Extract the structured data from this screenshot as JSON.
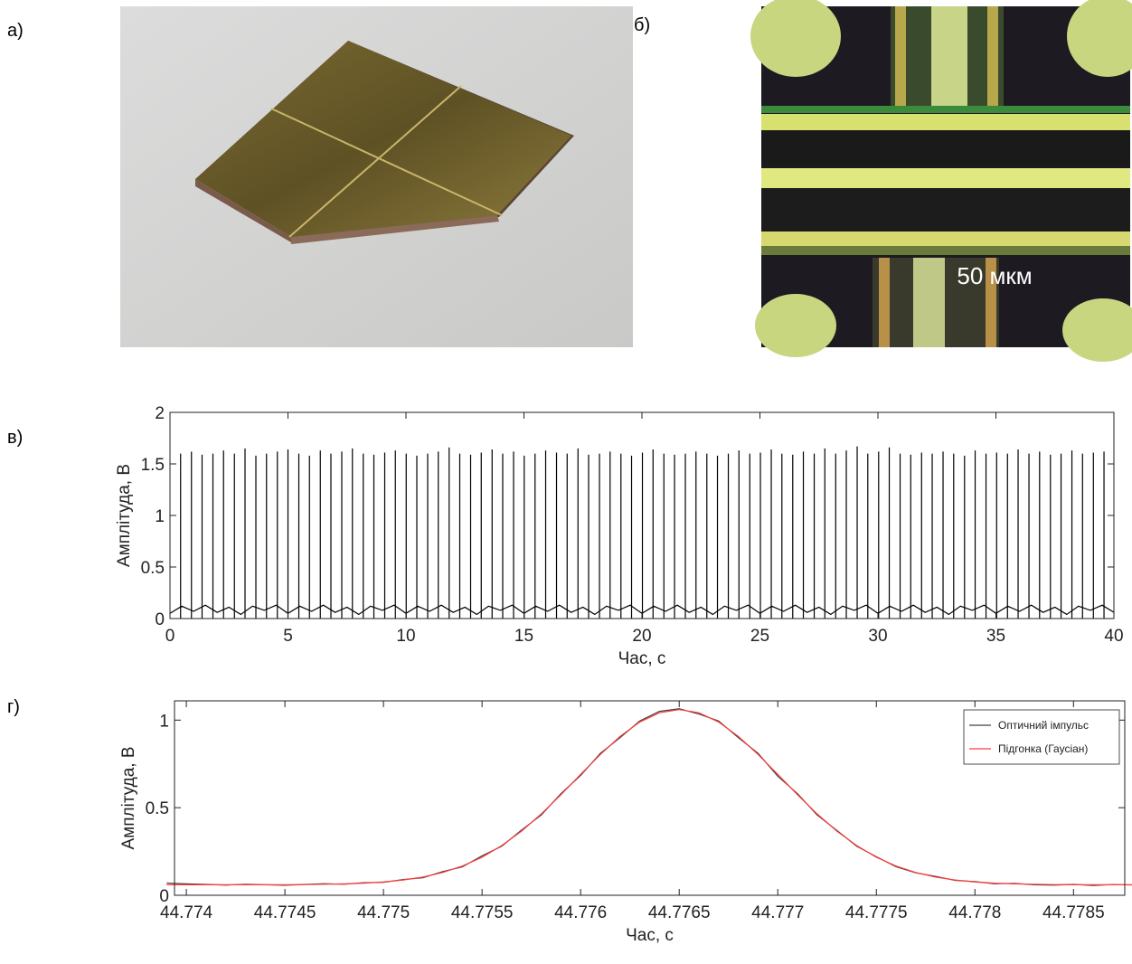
{
  "panel_labels": [
    "а)",
    "б)",
    "в)",
    "г)"
  ],
  "scale_label": "50 мкм",
  "chart_data": [
    {
      "type": "line",
      "xlabel": "Час, с",
      "ylabel": "Амплітуда, В",
      "xlim": [
        0,
        40
      ],
      "ylim": [
        0,
        2
      ],
      "xticks": [
        0,
        5,
        10,
        15,
        20,
        25,
        30,
        35,
        40
      ],
      "yticks": [
        0,
        0.5,
        1,
        1.5,
        2
      ],
      "series": [
        {
          "color": "#000000",
          "style": "stem",
          "x": [
            0.45,
            0.91,
            1.36,
            1.82,
            2.27,
            2.73,
            3.18,
            3.64,
            4.09,
            4.55,
            5.0,
            5.46,
            5.91,
            6.37,
            6.82,
            7.28,
            7.73,
            8.19,
            8.64,
            9.1,
            9.55,
            10.01,
            10.46,
            10.92,
            11.37,
            11.83,
            12.28,
            12.74,
            13.19,
            13.65,
            14.1,
            14.56,
            15.01,
            15.47,
            15.92,
            16.38,
            16.83,
            17.29,
            17.74,
            18.2,
            18.65,
            19.11,
            19.56,
            20.02,
            20.47,
            20.93,
            21.38,
            21.84,
            22.29,
            22.75,
            23.2,
            23.66,
            24.11,
            24.57,
            25.02,
            25.48,
            25.93,
            26.39,
            26.84,
            27.3,
            27.75,
            28.21,
            28.66,
            29.12,
            29.57,
            30.03,
            30.48,
            30.94,
            31.39,
            31.85,
            32.3,
            32.76,
            33.21,
            33.67,
            34.12,
            34.58,
            35.03,
            35.49,
            35.94,
            36.4,
            36.85,
            37.31,
            37.76,
            38.22,
            38.67,
            39.13,
            39.58
          ],
          "values": [
            1.6,
            1.62,
            1.59,
            1.6,
            1.63,
            1.6,
            1.65,
            1.58,
            1.6,
            1.62,
            1.64,
            1.6,
            1.58,
            1.63,
            1.6,
            1.62,
            1.65,
            1.6,
            1.59,
            1.61,
            1.63,
            1.6,
            1.58,
            1.6,
            1.62,
            1.66,
            1.6,
            1.59,
            1.61,
            1.64,
            1.6,
            1.62,
            1.58,
            1.6,
            1.63,
            1.61,
            1.6,
            1.65,
            1.59,
            1.6,
            1.62,
            1.6,
            1.58,
            1.61,
            1.64,
            1.6,
            1.59,
            1.6,
            1.62,
            1.6,
            1.58,
            1.6,
            1.63,
            1.6,
            1.61,
            1.64,
            1.6,
            1.59,
            1.62,
            1.6,
            1.65,
            1.6,
            1.63,
            1.67,
            1.6,
            1.62,
            1.66,
            1.6,
            1.59,
            1.61,
            1.6,
            1.62,
            1.6,
            1.58,
            1.63,
            1.6,
            1.61,
            1.6,
            1.64,
            1.6,
            1.62,
            1.59,
            1.6,
            1.63,
            1.6,
            1.61,
            1.62
          ]
        },
        {
          "color": "#000000",
          "style": "line",
          "x": [
            0,
            0.5,
            1,
            1.5,
            2,
            2.5,
            3,
            3.5,
            4,
            4.5,
            5,
            5.5,
            6,
            6.5,
            7,
            7.5,
            8,
            8.5,
            9,
            9.5,
            10,
            10.5,
            11,
            11.5,
            12,
            12.5,
            13,
            13.5,
            14,
            14.5,
            15,
            15.5,
            16,
            16.5,
            17,
            17.5,
            18,
            18.5,
            19,
            19.5,
            20,
            20.5,
            21,
            21.5,
            22,
            22.5,
            23,
            23.5,
            24,
            24.5,
            25,
            25.5,
            26,
            26.5,
            27,
            27.5,
            28,
            28.5,
            29,
            29.5,
            30,
            30.5,
            31,
            31.5,
            32,
            32.5,
            33,
            33.5,
            34,
            34.5,
            35,
            35.5,
            36,
            36.5,
            37,
            37.5,
            38,
            38.5,
            39,
            39.5,
            40
          ],
          "values": [
            0.05,
            0.12,
            0.07,
            0.13,
            0.06,
            0.11,
            0.04,
            0.12,
            0.08,
            0.13,
            0.05,
            0.12,
            0.07,
            0.13,
            0.06,
            0.11,
            0.04,
            0.12,
            0.08,
            0.13,
            0.05,
            0.12,
            0.07,
            0.13,
            0.06,
            0.11,
            0.04,
            0.12,
            0.08,
            0.13,
            0.05,
            0.12,
            0.07,
            0.13,
            0.06,
            0.11,
            0.04,
            0.12,
            0.08,
            0.13,
            0.05,
            0.12,
            0.07,
            0.13,
            0.06,
            0.11,
            0.04,
            0.12,
            0.08,
            0.13,
            0.05,
            0.12,
            0.07,
            0.13,
            0.06,
            0.11,
            0.04,
            0.12,
            0.08,
            0.13,
            0.05,
            0.12,
            0.07,
            0.13,
            0.06,
            0.11,
            0.04,
            0.12,
            0.08,
            0.13,
            0.05,
            0.12,
            0.07,
            0.13,
            0.06,
            0.11,
            0.04,
            0.12,
            0.08,
            0.13,
            0.06
          ]
        }
      ]
    },
    {
      "type": "line",
      "xlabel": "Час, с",
      "ylabel": "Амплітуда, В",
      "xlim": [
        44.77394,
        44.77876
      ],
      "ylim": [
        0,
        1.11
      ],
      "xticks": [
        44.774,
        44.7745,
        44.775,
        44.7755,
        44.776,
        44.7765,
        44.777,
        44.7775,
        44.778,
        44.7785
      ],
      "yticks": [
        0,
        0.5,
        1
      ],
      "legend": "upper right",
      "x": [
        44.7739,
        44.774,
        44.7741,
        44.7742,
        44.7743,
        44.7744,
        44.7745,
        44.7746,
        44.7747,
        44.7748,
        44.7749,
        44.775,
        44.7751,
        44.7752,
        44.7753,
        44.7754,
        44.7755,
        44.7756,
        44.7757,
        44.7758,
        44.7759,
        44.776,
        44.7761,
        44.7762,
        44.7763,
        44.7764,
        44.7765,
        44.7766,
        44.7767,
        44.7768,
        44.7769,
        44.777,
        44.7771,
        44.7772,
        44.7773,
        44.7774,
        44.7775,
        44.7776,
        44.7777,
        44.7778,
        44.7779,
        44.778,
        44.7781,
        44.7782,
        44.7783,
        44.7784,
        44.7785,
        44.7786,
        44.7787,
        44.7788
      ],
      "series": [
        {
          "name": "Оптичний імпульс",
          "color": "#404040",
          "values": [
            0.07,
            0.065,
            0.062,
            0.058,
            0.063,
            0.06,
            0.057,
            0.062,
            0.066,
            0.063,
            0.072,
            0.074,
            0.09,
            0.1,
            0.135,
            0.162,
            0.225,
            0.28,
            0.372,
            0.458,
            0.58,
            0.684,
            0.81,
            0.9,
            0.995,
            1.05,
            1.065,
            1.035,
            0.995,
            0.9,
            0.81,
            0.68,
            0.58,
            0.458,
            0.37,
            0.28,
            0.22,
            0.163,
            0.128,
            0.108,
            0.085,
            0.078,
            0.066,
            0.068,
            0.06,
            0.058,
            0.062,
            0.056,
            0.061,
            0.059
          ]
        },
        {
          "name": "Підгонка (Гаусіан)",
          "color": "#ff3b3b",
          "values": [
            0.06,
            0.06,
            0.06,
            0.06,
            0.06,
            0.06,
            0.06,
            0.061,
            0.063,
            0.065,
            0.069,
            0.076,
            0.087,
            0.104,
            0.13,
            0.167,
            0.217,
            0.284,
            0.366,
            0.464,
            0.574,
            0.69,
            0.804,
            0.907,
            0.989,
            1.042,
            1.06,
            1.042,
            0.989,
            0.907,
            0.804,
            0.69,
            0.574,
            0.464,
            0.366,
            0.284,
            0.217,
            0.167,
            0.13,
            0.104,
            0.087,
            0.076,
            0.069,
            0.065,
            0.063,
            0.061,
            0.06,
            0.06,
            0.06,
            0.06
          ]
        }
      ]
    }
  ]
}
